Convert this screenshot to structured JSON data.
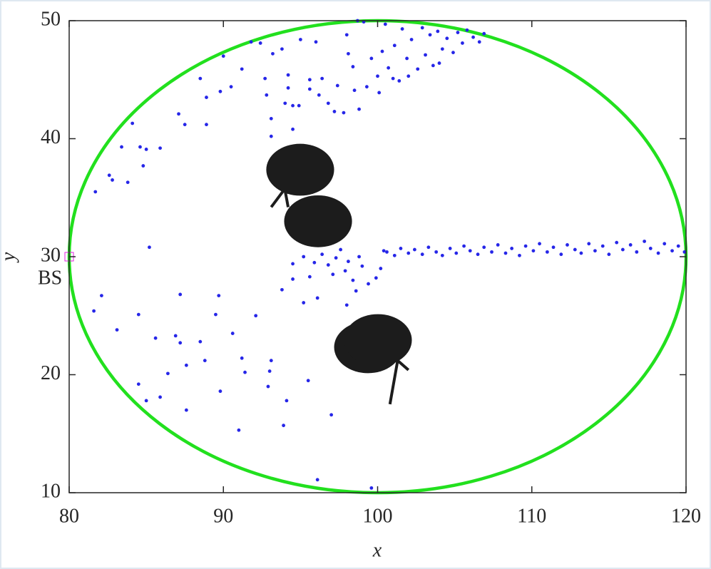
{
  "chart_data": {
    "type": "scatter",
    "xlabel": "x",
    "ylabel": "y",
    "xlim": [
      80,
      120
    ],
    "ylim": [
      10,
      50
    ],
    "xticks": [
      80,
      90,
      100,
      110,
      120
    ],
    "yticks": [
      10,
      20,
      30,
      40,
      50
    ],
    "region": {
      "center": [
        100,
        30
      ],
      "radius": 20,
      "color": "#22e01e"
    },
    "obstacles": [
      {
        "x": 94.98,
        "y": 37.37,
        "r": 2.2,
        "color": "#1c1c1c"
      },
      {
        "x": 96.14,
        "y": 33.0,
        "r": 2.2,
        "color": "#1c1c1c"
      },
      {
        "x": 99.38,
        "y": 22.33,
        "r": 2.2,
        "color": "#1c1c1c"
      },
      {
        "x": 100.02,
        "y": 22.93,
        "r": 2.2,
        "color": "#1c1c1c"
      }
    ],
    "lines": [
      {
        "x": [
          93.1,
          93.9
        ],
        "y": [
          34.2,
          35.6
        ],
        "color": "#1c1c1c"
      },
      {
        "x": [
          94.0,
          94.2
        ],
        "y": [
          35.6,
          34.2
        ],
        "color": "#1c1c1c"
      },
      {
        "x": [
          100.8,
          101.3,
          102.0
        ],
        "y": [
          17.5,
          21.2,
          20.4
        ],
        "color": "#1c1c1c"
      }
    ],
    "station": {
      "x": 80,
      "y": 30,
      "label": "BS",
      "color": "#e020e0"
    },
    "series": [
      {
        "color": "#2626e8",
        "x": [
          81.6,
          82.1,
          83.1,
          84.5,
          84.5,
          85,
          85.6,
          85.9,
          86.4,
          86.9,
          87.2,
          87.2,
          87.6,
          87.6,
          88.5,
          88.8,
          89.5,
          89.8,
          89.7,
          90.6,
          91.0,
          91.2,
          91.4,
          92.1,
          92.9,
          93,
          93.1,
          93.9,
          94.1,
          95.2,
          95.5,
          96.1,
          97.0,
          96.1,
          99.6,
          85.2,
          93.8,
          94.5,
          94.5,
          95.6,
          95.9,
          81.7,
          82.6,
          82.8,
          83.4,
          83.8,
          84.1,
          84.8,
          84.6,
          85.0,
          85.9,
          87.1,
          87.5,
          88.5,
          88.9,
          88.9,
          89.8,
          90,
          90.5,
          91.2,
          91.8,
          92.4,
          92.7,
          92.8,
          93.1,
          93.1,
          93.2,
          93.8,
          94,
          94.2,
          94.5,
          94.2,
          94.5,
          95.0,
          94.9,
          95.6,
          95.6,
          96.0,
          96.2,
          96.4,
          96.8,
          97.2,
          97.4,
          97.8,
          98.1,
          98.4,
          98.8,
          98.5,
          98.0,
          98.7,
          99.1,
          99.3,
          99.6,
          100.0,
          100.1,
          100.5,
          100.3,
          100.7,
          101.1,
          101.4,
          101.6,
          101.9,
          102.2,
          102.6,
          102.9,
          103.1,
          103.4,
          103.6,
          103.9,
          104.2,
          104.5,
          104.9,
          105.2,
          105.5,
          105.8,
          106.2,
          106.6,
          106.9,
          101.0,
          102.0,
          104.0,
          96.8,
          97.1,
          97.3,
          97.6,
          97.9,
          98.1,
          98.4,
          98.8,
          99.0,
          99.4,
          99.9,
          100.2,
          98.6,
          98.0,
          96.4,
          95.2,
          100.4,
          100.6,
          101.1,
          101.5,
          102.0,
          102.4,
          102.9,
          103.3,
          103.8,
          104.2,
          104.7,
          105.1,
          105.6,
          106.0,
          106.5,
          106.9,
          107.4,
          107.8,
          108.3,
          108.7,
          109.2,
          109.6,
          110.1,
          110.5,
          111.0,
          111.4,
          111.9,
          112.3,
          112.8,
          113.2,
          113.7,
          114.1,
          114.6,
          115.0,
          115.5,
          115.9,
          116.4,
          116.8,
          117.3,
          117.7,
          118.2,
          118.6,
          119.1,
          119.5,
          119.9
        ],
        "y": [
          25.4,
          26.7,
          23.8,
          19.2,
          25.1,
          17.8,
          23.1,
          18.1,
          20.1,
          23.3,
          22.7,
          26.8,
          17.0,
          20.8,
          22.8,
          21.2,
          25.1,
          18.6,
          26.7,
          23.5,
          15.3,
          21.4,
          20.2,
          25.0,
          19.0,
          20.3,
          21.2,
          15.7,
          17.8,
          26.1,
          19.5,
          26.5,
          16.6,
          11.1,
          10.4,
          30.8,
          27.2,
          28.1,
          29.4,
          28.3,
          29.5,
          35.5,
          36.9,
          36.5,
          39.3,
          36.3,
          41.3,
          37.7,
          39.3,
          39.1,
          39.2,
          42.1,
          41.2,
          45.1,
          43.5,
          41.2,
          44.0,
          47,
          44.4,
          45.9,
          48.2,
          48.1,
          45.1,
          43.7,
          41.7,
          40.2,
          47.2,
          47.6,
          43,
          44.3,
          42.8,
          45.4,
          40.8,
          48.4,
          42.8,
          45.0,
          44.2,
          48.2,
          43.7,
          45.1,
          43.0,
          42.3,
          44.5,
          42.2,
          47.2,
          46.1,
          42.5,
          44.1,
          48.8,
          50.0,
          49.9,
          44.4,
          46.8,
          45.3,
          43.9,
          49.7,
          47.4,
          46.0,
          47.9,
          44.9,
          49.3,
          46.8,
          48.4,
          45.9,
          49.4,
          47.1,
          48.8,
          46.2,
          49.1,
          47.6,
          48.5,
          47.3,
          49.0,
          48.1,
          49.2,
          48.6,
          48.2,
          48.9,
          45.1,
          45.3,
          46.4,
          29.3,
          28.5,
          29.9,
          30.6,
          28.8,
          29.6,
          28.0,
          30.0,
          29.2,
          27.7,
          28.2,
          29.0,
          27.1,
          25.9,
          30.2,
          30.0,
          30.5,
          30.4,
          30.1,
          30.7,
          30.3,
          30.6,
          30.2,
          30.8,
          30.4,
          30.1,
          30.7,
          30.3,
          30.9,
          30.5,
          30.2,
          30.8,
          30.4,
          31.0,
          30.3,
          30.7,
          30.1,
          30.9,
          30.5,
          31.1,
          30.4,
          30.8,
          30.2,
          31.0,
          30.6,
          30.3,
          31.1,
          30.5,
          30.9,
          30.2,
          31.2,
          30.6,
          31.0,
          30.4,
          31.3,
          30.7,
          30.3,
          31.1,
          30.5,
          30.9,
          30.4
        ]
      }
    ]
  }
}
